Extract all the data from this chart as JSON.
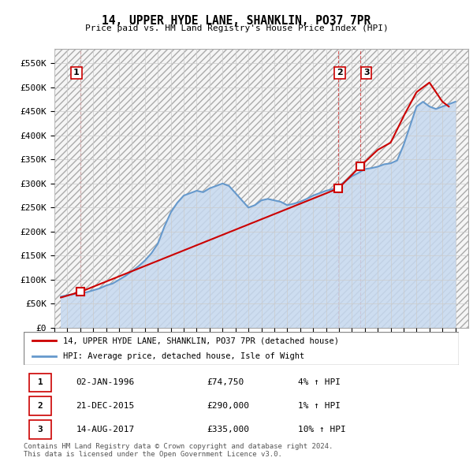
{
  "title": "14, UPPER HYDE LANE, SHANKLIN, PO37 7PR",
  "subtitle": "Price paid vs. HM Land Registry's House Price Index (HPI)",
  "legend_line1": "14, UPPER HYDE LANE, SHANKLIN, PO37 7PR (detached house)",
  "legend_line2": "HPI: Average price, detached house, Isle of Wight",
  "table_rows": [
    {
      "num": "1",
      "date": "02-JAN-1996",
      "price": "£74,750",
      "change": "4% ↑ HPI"
    },
    {
      "num": "2",
      "date": "21-DEC-2015",
      "price": "£290,000",
      "change": "1% ↑ HPI"
    },
    {
      "num": "3",
      "date": "14-AUG-2017",
      "price": "£335,000",
      "change": "10% ↑ HPI"
    }
  ],
  "footnote": "Contains HM Land Registry data © Crown copyright and database right 2024.\nThis data is licensed under the Open Government Licence v3.0.",
  "price_color": "#cc0000",
  "hpi_color": "#6699cc",
  "hpi_fill_color": "#c6d9f0",
  "grid_color": "#cccccc",
  "ytick_labels": [
    "£0",
    "£50K",
    "£100K",
    "£150K",
    "£200K",
    "£250K",
    "£300K",
    "£350K",
    "£400K",
    "£450K",
    "£500K",
    "£550K"
  ],
  "ytick_vals": [
    0,
    50000,
    100000,
    150000,
    200000,
    250000,
    300000,
    350000,
    400000,
    450000,
    500000,
    550000
  ],
  "ylim": [
    0,
    580000
  ],
  "xlim": [
    1994,
    2026
  ],
  "sale_points": [
    {
      "year": 1996.01,
      "price": 74750,
      "label": "1"
    },
    {
      "year": 2015.97,
      "price": 290000,
      "label": "2"
    },
    {
      "year": 2017.62,
      "price": 335000,
      "label": "3"
    }
  ],
  "vline_years": [
    1996.01,
    2015.97,
    2017.62
  ],
  "years_hpi": [
    1994.5,
    1995,
    1995.5,
    1996,
    1996.5,
    1997,
    1997.5,
    1998,
    1998.5,
    1999,
    1999.5,
    2000,
    2000.5,
    2001,
    2001.5,
    2002,
    2002.5,
    2003,
    2003.5,
    2004,
    2004.5,
    2005,
    2005.5,
    2006,
    2006.5,
    2007,
    2007.5,
    2008,
    2008.5,
    2009,
    2009.5,
    2010,
    2010.5,
    2011,
    2011.5,
    2012,
    2012.5,
    2013,
    2013.5,
    2014,
    2014.5,
    2015,
    2015.5,
    2016,
    2016.5,
    2017,
    2017.5,
    2018,
    2018.5,
    2019,
    2019.5,
    2020,
    2020.5,
    2021,
    2021.5,
    2022,
    2022.5,
    2023,
    2023.5,
    2024,
    2024.5,
    2025
  ],
  "hpi_values": [
    65000,
    68000,
    70000,
    72000,
    74000,
    78000,
    82000,
    88000,
    92000,
    100000,
    108000,
    118000,
    128000,
    140000,
    155000,
    175000,
    210000,
    240000,
    260000,
    275000,
    280000,
    285000,
    282000,
    290000,
    295000,
    300000,
    295000,
    280000,
    265000,
    250000,
    255000,
    265000,
    268000,
    265000,
    262000,
    255000,
    258000,
    262000,
    268000,
    275000,
    280000,
    285000,
    288000,
    295000,
    305000,
    315000,
    322000,
    330000,
    332000,
    335000,
    340000,
    342000,
    348000,
    380000,
    420000,
    460000,
    470000,
    460000,
    455000,
    460000,
    465000,
    470000
  ],
  "years_price": [
    1994.5,
    1996.01,
    2015.97,
    2017.62,
    2019,
    2020,
    2021,
    2022,
    2023,
    2024,
    2024.5
  ],
  "price_vals": [
    63000,
    74750,
    290000,
    335000,
    370000,
    385000,
    440000,
    490000,
    510000,
    470000,
    460000
  ]
}
